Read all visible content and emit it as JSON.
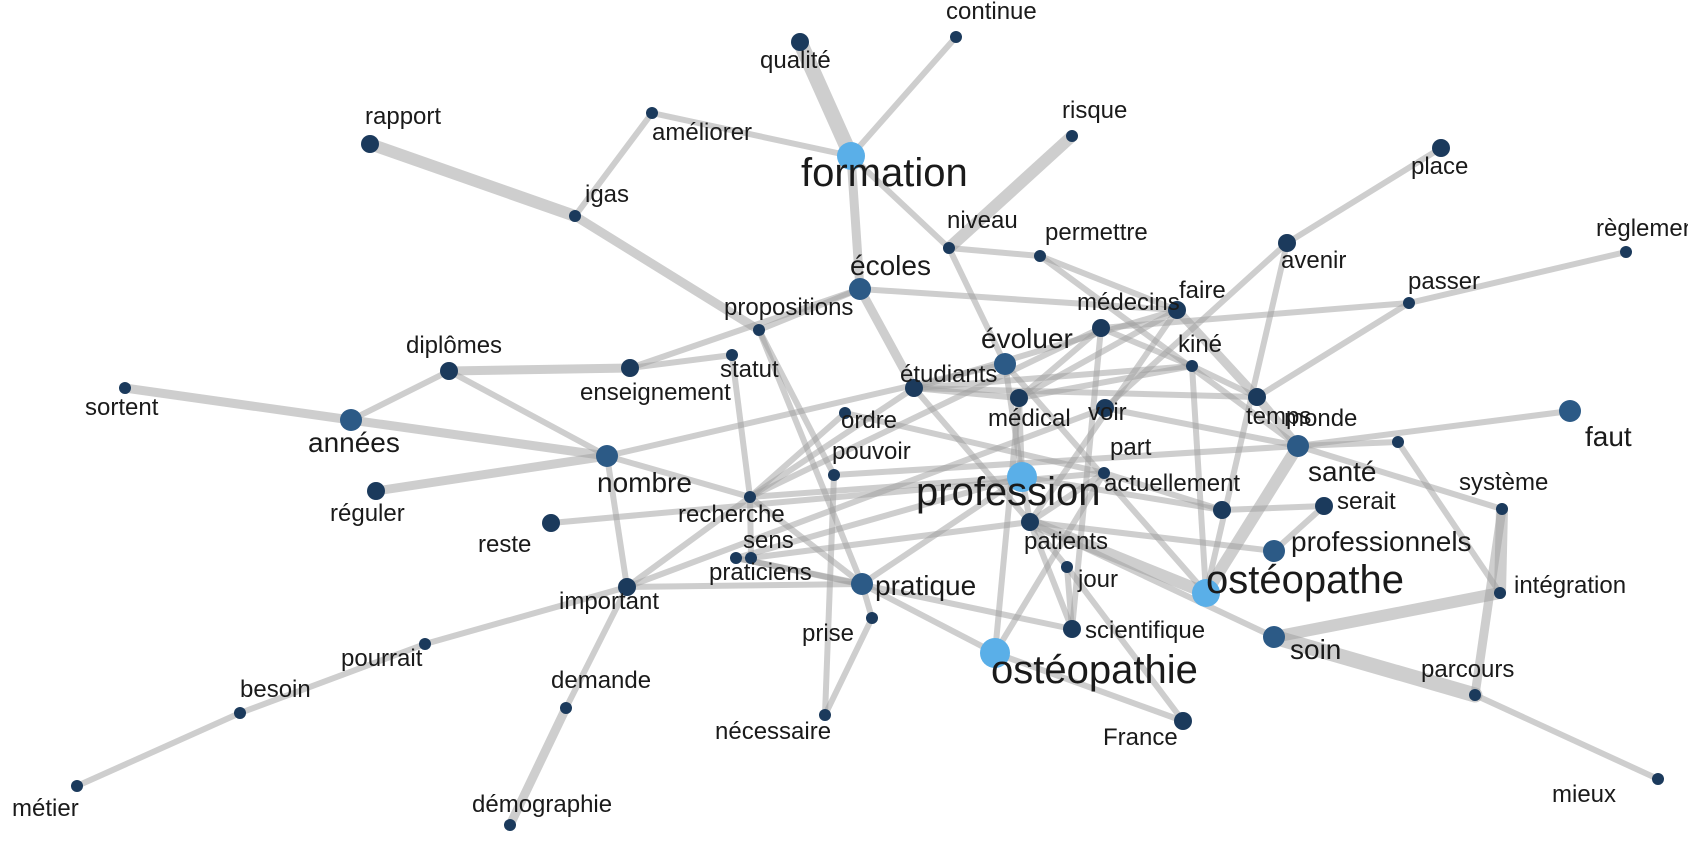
{
  "colors": {
    "edge": "#9e9e9e",
    "node_levels": [
      "#1b3a5c",
      "#2c5a86",
      "#5aafe8"
    ]
  },
  "nodes": [
    {
      "id": "continue",
      "label": "continue",
      "level": 0
    },
    {
      "id": "qualite",
      "label": "qualité",
      "level": 0
    },
    {
      "id": "rapport",
      "label": "rapport",
      "level": 0
    },
    {
      "id": "ameliorer",
      "label": "améliorer",
      "level": 0
    },
    {
      "id": "risque",
      "label": "risque",
      "level": 0
    },
    {
      "id": "formation",
      "label": "formation",
      "level": 2
    },
    {
      "id": "place",
      "label": "place",
      "level": 0
    },
    {
      "id": "igas",
      "label": "igas",
      "level": 0
    },
    {
      "id": "niveau",
      "label": "niveau",
      "level": 0
    },
    {
      "id": "permettre",
      "label": "permettre",
      "level": 0
    },
    {
      "id": "reglementation",
      "label": "règlementation",
      "level": 0
    },
    {
      "id": "avenir",
      "label": "avenir",
      "level": 0
    },
    {
      "id": "ecoles",
      "label": "écoles",
      "level": 1
    },
    {
      "id": "passer",
      "label": "passer",
      "level": 0
    },
    {
      "id": "faire",
      "label": "faire",
      "level": 0
    },
    {
      "id": "medecins",
      "label": "médecins",
      "level": 0
    },
    {
      "id": "propositions",
      "label": "propositions",
      "level": 0
    },
    {
      "id": "diplomes",
      "label": "diplômes",
      "level": 0
    },
    {
      "id": "kine",
      "label": "kiné",
      "level": 0
    },
    {
      "id": "evoluer",
      "label": "évoluer",
      "level": 1
    },
    {
      "id": "statut",
      "label": "statut",
      "level": 0
    },
    {
      "id": "etudiants",
      "label": "étudiants",
      "level": 0
    },
    {
      "id": "enseignement",
      "label": "enseignement",
      "level": 0
    },
    {
      "id": "sortent",
      "label": "sortent",
      "level": 0
    },
    {
      "id": "medical",
      "label": "médical",
      "level": 0
    },
    {
      "id": "voir",
      "label": "voir",
      "level": 0
    },
    {
      "id": "temps",
      "label": "temps",
      "level": 0
    },
    {
      "id": "ordre",
      "label": "ordre",
      "level": 0
    },
    {
      "id": "monde",
      "label": "monde",
      "level": 0
    },
    {
      "id": "faut",
      "label": "faut",
      "level": 1
    },
    {
      "id": "annees",
      "label": "années",
      "level": 1
    },
    {
      "id": "part",
      "label": "part",
      "level": 0
    },
    {
      "id": "pouvoir",
      "label": "pouvoir",
      "level": 0
    },
    {
      "id": "nombre",
      "label": "nombre",
      "level": 1
    },
    {
      "id": "sante",
      "label": "santé",
      "level": 1
    },
    {
      "id": "systeme",
      "label": "système",
      "level": 0
    },
    {
      "id": "actuellement",
      "label": "actuellement",
      "level": 0
    },
    {
      "id": "reguler",
      "label": "réguler",
      "level": 0
    },
    {
      "id": "profession",
      "label": "profession",
      "level": 2
    },
    {
      "id": "serait",
      "label": "serait",
      "level": 0
    },
    {
      "id": "recherche",
      "label": "recherche",
      "level": 0
    },
    {
      "id": "reste",
      "label": "reste",
      "level": 0
    },
    {
      "id": "patients",
      "label": "patients",
      "level": 0
    },
    {
      "id": "professionnels",
      "label": "professionnels",
      "level": 1
    },
    {
      "id": "sens",
      "label": "sens",
      "level": 0
    },
    {
      "id": "praticiens",
      "label": "praticiens",
      "level": 0
    },
    {
      "id": "jour",
      "label": "jour",
      "level": 0
    },
    {
      "id": "osteopathe",
      "label": "ostéopathe",
      "level": 2
    },
    {
      "id": "integration",
      "label": "intégration",
      "level": 0
    },
    {
      "id": "pratique",
      "label": "pratique",
      "level": 1
    },
    {
      "id": "important",
      "label": "important",
      "level": 0
    },
    {
      "id": "prise",
      "label": "prise",
      "level": 0
    },
    {
      "id": "scientifique",
      "label": "scientifique",
      "level": 0
    },
    {
      "id": "soin",
      "label": "soin",
      "level": 1
    },
    {
      "id": "pourrait",
      "label": "pourrait",
      "level": 0
    },
    {
      "id": "osteopathie",
      "label": "ostéopathie",
      "level": 2
    },
    {
      "id": "parcours",
      "label": "parcours",
      "level": 0
    },
    {
      "id": "besoin",
      "label": "besoin",
      "level": 0
    },
    {
      "id": "demande",
      "label": "demande",
      "level": 0
    },
    {
      "id": "necessaire",
      "label": "nécessaire",
      "level": 0
    },
    {
      "id": "france",
      "label": "France",
      "level": 0
    },
    {
      "id": "metier",
      "label": "métier",
      "level": 0
    },
    {
      "id": "demographie",
      "label": "démographie",
      "level": 0
    },
    {
      "id": "mieux",
      "label": "mieux",
      "level": 0
    }
  ],
  "edges": [
    [
      "formation",
      "qualite",
      5
    ],
    [
      "formation",
      "continue",
      2
    ],
    [
      "formation",
      "ameliorer",
      2
    ],
    [
      "formation",
      "ecoles",
      3
    ],
    [
      "formation",
      "niveau",
      2
    ],
    [
      "niveau",
      "risque",
      4
    ],
    [
      "rapport",
      "igas",
      4
    ],
    [
      "igas",
      "ameliorer",
      2
    ],
    [
      "igas",
      "propositions",
      3
    ],
    [
      "ecoles",
      "propositions",
      2
    ],
    [
      "ecoles",
      "etudiants",
      3
    ],
    [
      "ecoles",
      "enseignement",
      2
    ],
    [
      "ecoles",
      "faire",
      2
    ],
    [
      "niveau",
      "permettre",
      2
    ],
    [
      "niveau",
      "evoluer",
      2
    ],
    [
      "permettre",
      "faire",
      2
    ],
    [
      "permettre",
      "sante",
      2
    ],
    [
      "avenir",
      "place",
      2
    ],
    [
      "avenir",
      "voir",
      2
    ],
    [
      "passer",
      "reglementation",
      2
    ],
    [
      "passer",
      "medecins",
      2
    ],
    [
      "passer",
      "temps",
      2
    ],
    [
      "faire",
      "temps",
      3
    ],
    [
      "faire",
      "medical",
      2
    ],
    [
      "faire",
      "etudiants",
      2
    ],
    [
      "faire",
      "patients",
      2
    ],
    [
      "medecins",
      "kine",
      2
    ],
    [
      "medecins",
      "medical",
      2
    ],
    [
      "medecins",
      "recherche",
      2
    ],
    [
      "medecins",
      "scientifique",
      2
    ],
    [
      "kine",
      "medical",
      2
    ],
    [
      "kine",
      "temps",
      2
    ],
    [
      "kine",
      "etudiants",
      2
    ],
    [
      "diplomes",
      "enseignement",
      3
    ],
    [
      "diplomes",
      "annees",
      2
    ],
    [
      "diplomes",
      "nombre",
      2
    ],
    [
      "enseignement",
      "statut",
      2
    ],
    [
      "statut",
      "recherche",
      2
    ],
    [
      "annees",
      "sortent",
      3
    ],
    [
      "annees",
      "nombre",
      3
    ],
    [
      "nombre",
      "reguler",
      3
    ],
    [
      "nombre",
      "recherche",
      2
    ],
    [
      "nombre",
      "important",
      2
    ],
    [
      "nombre",
      "evoluer",
      2
    ],
    [
      "propositions",
      "pouvoir",
      2
    ],
    [
      "propositions",
      "pratique",
      2
    ],
    [
      "etudiants",
      "medical",
      2
    ],
    [
      "etudiants",
      "patients",
      2
    ],
    [
      "etudiants",
      "temps",
      2
    ],
    [
      "etudiants",
      "recherche",
      2
    ],
    [
      "evoluer",
      "profession",
      2
    ],
    [
      "evoluer",
      "osteopathe",
      2
    ],
    [
      "medical",
      "profession",
      2
    ],
    [
      "medical",
      "osteopathie",
      2
    ],
    [
      "voir",
      "sante",
      2
    ],
    [
      "voir",
      "important",
      2
    ],
    [
      "ordre",
      "recherche",
      2
    ],
    [
      "ordre",
      "part",
      2
    ],
    [
      "temps",
      "sante",
      3
    ],
    [
      "sante",
      "faut",
      2
    ],
    [
      "sante",
      "monde",
      2
    ],
    [
      "sante",
      "osteopathe",
      4
    ],
    [
      "sante",
      "systeme",
      2
    ],
    [
      "sante",
      "pouvoir",
      2
    ],
    [
      "monde",
      "integration",
      2
    ],
    [
      "systeme",
      "integration",
      4
    ],
    [
      "systeme",
      "parcours",
      3
    ],
    [
      "integration",
      "soin",
      4
    ],
    [
      "soin",
      "parcours",
      5
    ],
    [
      "soin",
      "patients",
      2
    ],
    [
      "parcours",
      "mieux",
      2
    ],
    [
      "part",
      "actuellement",
      2
    ],
    [
      "part",
      "patients",
      2
    ],
    [
      "part",
      "osteopathie",
      2
    ],
    [
      "part",
      "reste",
      2
    ],
    [
      "actuellement",
      "serait",
      2
    ],
    [
      "actuellement",
      "profession",
      2
    ],
    [
      "profession",
      "patients",
      2
    ],
    [
      "profession",
      "recherche",
      2
    ],
    [
      "profession",
      "pratique",
      2
    ],
    [
      "profession",
      "sens",
      2
    ],
    [
      "patients",
      "osteopathe",
      4
    ],
    [
      "patients",
      "professionnels",
      2
    ],
    [
      "patients",
      "scientifique",
      2
    ],
    [
      "patients",
      "jour",
      2
    ],
    [
      "patients",
      "praticiens",
      2
    ],
    [
      "professionnels",
      "serait",
      2
    ],
    [
      "osteopathe",
      "avenir",
      2
    ],
    [
      "osteopathe",
      "kine",
      2
    ],
    [
      "recherche",
      "important",
      2
    ],
    [
      "recherche",
      "praticiens",
      2
    ],
    [
      "recherche",
      "pratique",
      2
    ],
    [
      "pratique",
      "osteopathie",
      2
    ],
    [
      "pratique",
      "sens",
      2
    ],
    [
      "pratique",
      "prise",
      2
    ],
    [
      "pratique",
      "important",
      2
    ],
    [
      "prise",
      "necessaire",
      2
    ],
    [
      "sens",
      "scientifique",
      2
    ],
    [
      "jour",
      "scientifique",
      2
    ],
    [
      "important",
      "pourrait",
      2
    ],
    [
      "pourrait",
      "besoin",
      2
    ],
    [
      "besoin",
      "metier",
      2
    ],
    [
      "important",
      "demande",
      2
    ],
    [
      "demande",
      "demographie",
      3
    ],
    [
      "osteopathie",
      "france",
      2
    ],
    [
      "france",
      "jour",
      2
    ],
    [
      "pouvoir",
      "necessaire",
      2
    ]
  ]
}
